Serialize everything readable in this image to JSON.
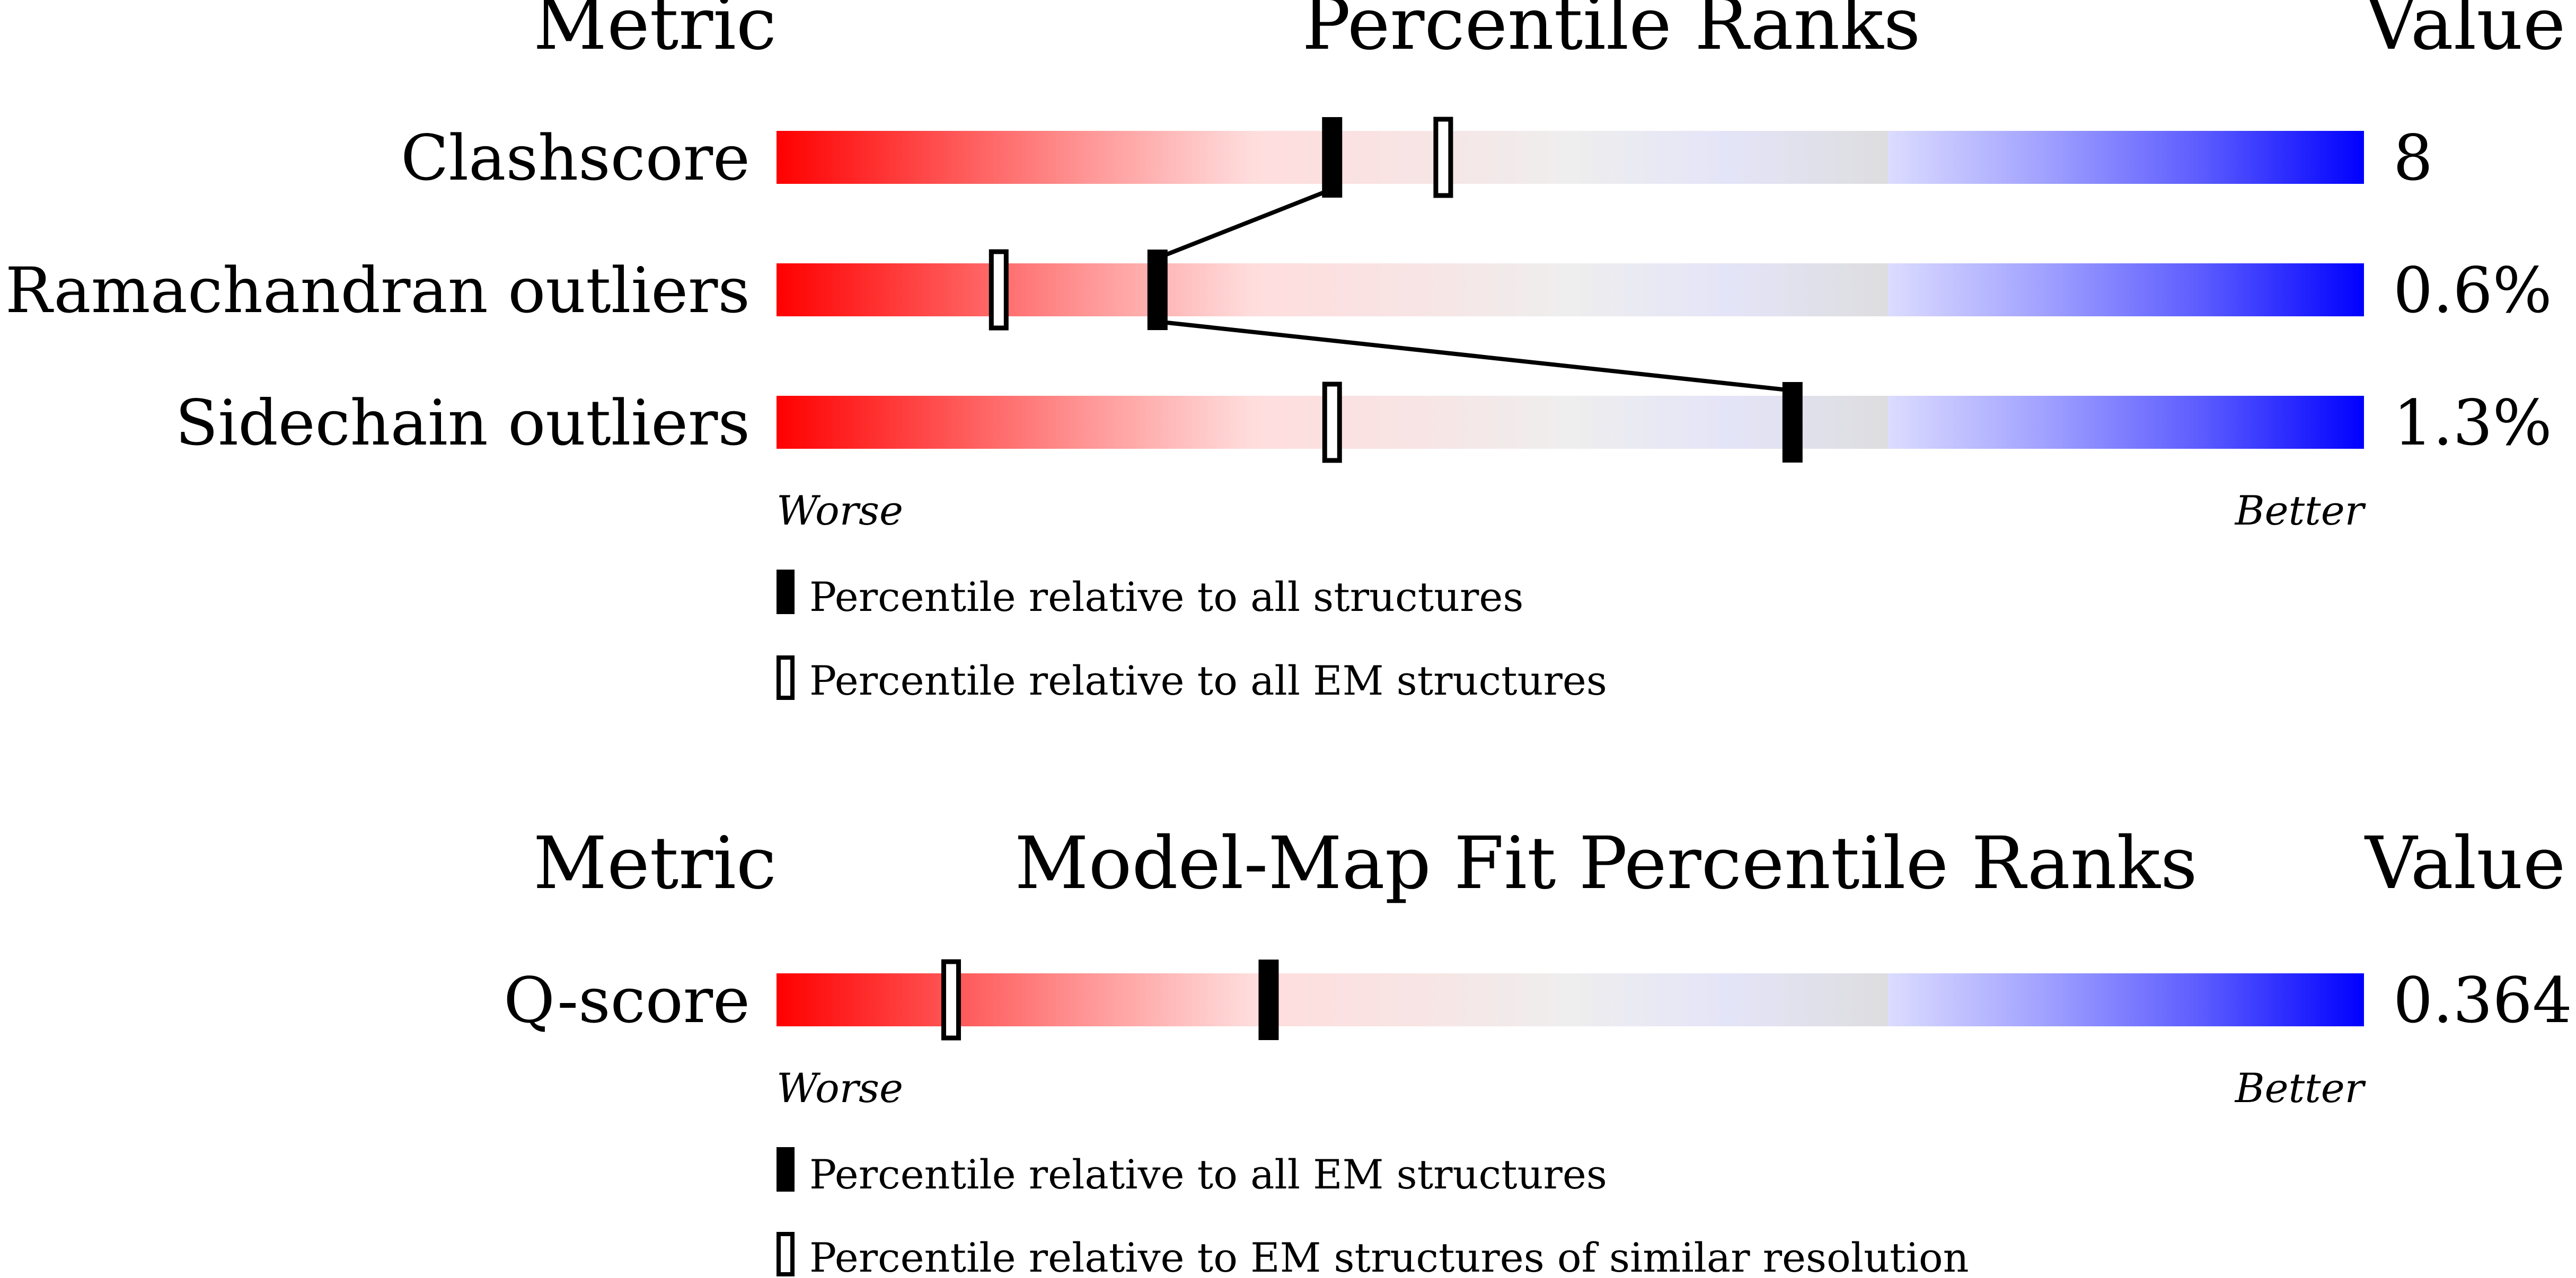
{
  "colors": {
    "worse": "#ff0000",
    "mid": "#eeeeee",
    "better": "#0000ff",
    "marker": "#000000"
  },
  "chart_data": [
    {
      "type": "bar",
      "header_metric": "Metric",
      "title": "Percentile Ranks",
      "header_value": "Value",
      "xlim": [
        0,
        100
      ],
      "worse_label": "Worse",
      "better_label": "Better",
      "metrics": [
        {
          "name": "Clashscore",
          "value": "8",
          "percentile_all": 35,
          "percentile_em": 42
        },
        {
          "name": "Ramachandran outliers",
          "value": "0.6%",
          "percentile_all": 24,
          "percentile_em": 14
        },
        {
          "name": "Sidechain outliers",
          "value": "1.3%",
          "percentile_all": 64,
          "percentile_em": 35
        }
      ],
      "legend": [
        {
          "marker": "filled",
          "label": "Percentile relative to all structures"
        },
        {
          "marker": "open",
          "label": "Percentile relative to all EM structures"
        }
      ]
    },
    {
      "type": "bar",
      "header_metric": "Metric",
      "title": "Model-Map Fit Percentile Ranks",
      "header_value": "Value",
      "xlim": [
        0,
        100
      ],
      "worse_label": "Worse",
      "better_label": "Better",
      "metrics": [
        {
          "name": "Q-score",
          "value": "0.364",
          "percentile_all": 31,
          "percentile_em": 11
        }
      ],
      "legend": [
        {
          "marker": "filled",
          "label": "Percentile relative to all EM structures"
        },
        {
          "marker": "open",
          "label": "Percentile relative to EM structures of similar resolution"
        }
      ]
    }
  ]
}
